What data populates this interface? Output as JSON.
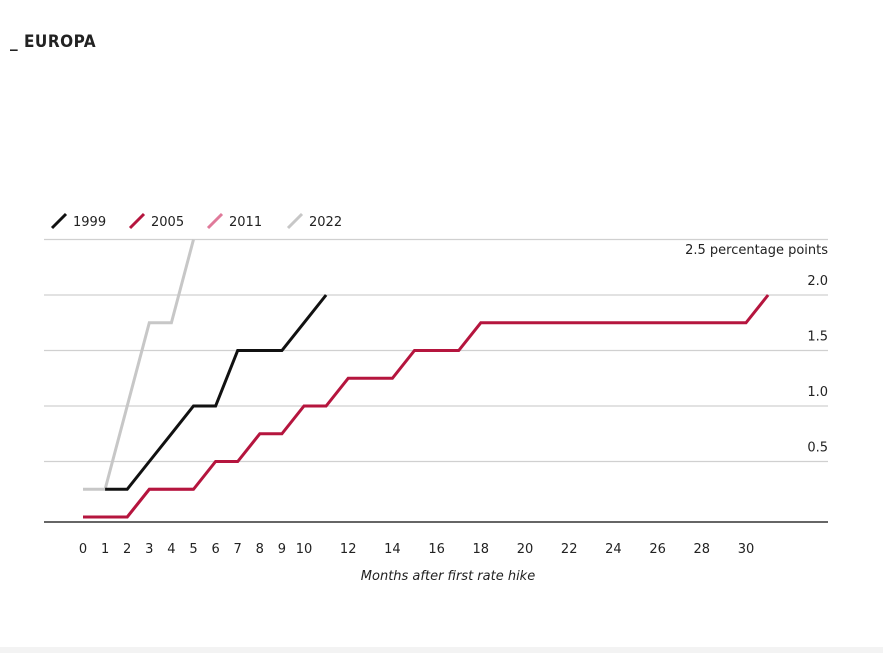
{
  "heading": "_ EUROPA",
  "chart_data": {
    "type": "line",
    "xlabel": "Months after first rate hike",
    "ylabel": "2.5 percentage points",
    "xlim": [
      -1.2,
      34
    ],
    "ylim": [
      -0.05,
      2.5
    ],
    "x_ticks": [
      0,
      1,
      2,
      3,
      4,
      5,
      6,
      7,
      8,
      9,
      10,
      12,
      14,
      16,
      18,
      20,
      22,
      24,
      26,
      28,
      30
    ],
    "y_ticks": [
      0.5,
      1.0,
      1.5,
      2.0
    ],
    "y_tick_labels": [
      "0.5",
      "1.0",
      "1.5",
      "2.0"
    ],
    "grid": true,
    "legend_position": "top-left",
    "series": [
      {
        "name": "1999",
        "color": "#111111",
        "x": [
          1,
          2,
          3,
          4,
          5,
          6,
          7,
          8,
          9,
          10,
          11
        ],
        "y": [
          0.25,
          0.25,
          0.5,
          0.75,
          1.0,
          1.0,
          1.5,
          1.5,
          1.5,
          1.75,
          2.0
        ]
      },
      {
        "name": "2005",
        "color": "#b5153e",
        "x": [
          0,
          1,
          2,
          3,
          4,
          5,
          6,
          7,
          8,
          9,
          10,
          11,
          12,
          13,
          14,
          15,
          16,
          17,
          18,
          19,
          20,
          21,
          22,
          23,
          24,
          25,
          26,
          27,
          28,
          29,
          30,
          31
        ],
        "y": [
          0,
          0,
          0,
          0.25,
          0.25,
          0.25,
          0.5,
          0.5,
          0.75,
          0.75,
          1.0,
          1.0,
          1.25,
          1.25,
          1.25,
          1.5,
          1.5,
          1.5,
          1.75,
          1.75,
          1.75,
          1.75,
          1.75,
          1.75,
          1.75,
          1.75,
          1.75,
          1.75,
          1.75,
          1.75,
          1.75,
          2.0
        ]
      },
      {
        "name": "2011",
        "color": "#e07a9a",
        "x": [
          0,
          1,
          2,
          3,
          4,
          5
        ],
        "y": [
          0,
          0,
          0,
          0.25,
          0.25,
          0.25
        ]
      },
      {
        "name": "2022",
        "color": "#c7c7c7",
        "x": [
          0,
          1,
          2,
          3,
          4,
          5
        ],
        "y": [
          0.25,
          0.25,
          1.0,
          1.75,
          1.75,
          2.5
        ]
      }
    ]
  }
}
